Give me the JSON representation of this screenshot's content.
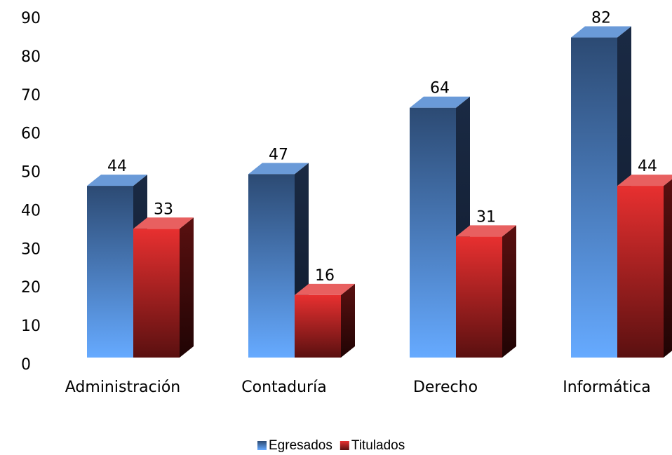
{
  "chart_data": {
    "type": "bar3d",
    "categories": [
      "Administración",
      "Contaduría",
      "Derecho",
      "Informática"
    ],
    "series": [
      {
        "name": "Egresados",
        "color": "#4a7fc8",
        "values": [
          44,
          47,
          64,
          82
        ]
      },
      {
        "name": "Titulados",
        "color": "#c02020",
        "values": [
          33,
          16,
          31,
          44
        ]
      }
    ],
    "ylim": [
      0,
      90
    ],
    "yticks": [
      0,
      10,
      20,
      30,
      40,
      50,
      60,
      70,
      80,
      90
    ],
    "legend": "bottom",
    "grid": false
  }
}
